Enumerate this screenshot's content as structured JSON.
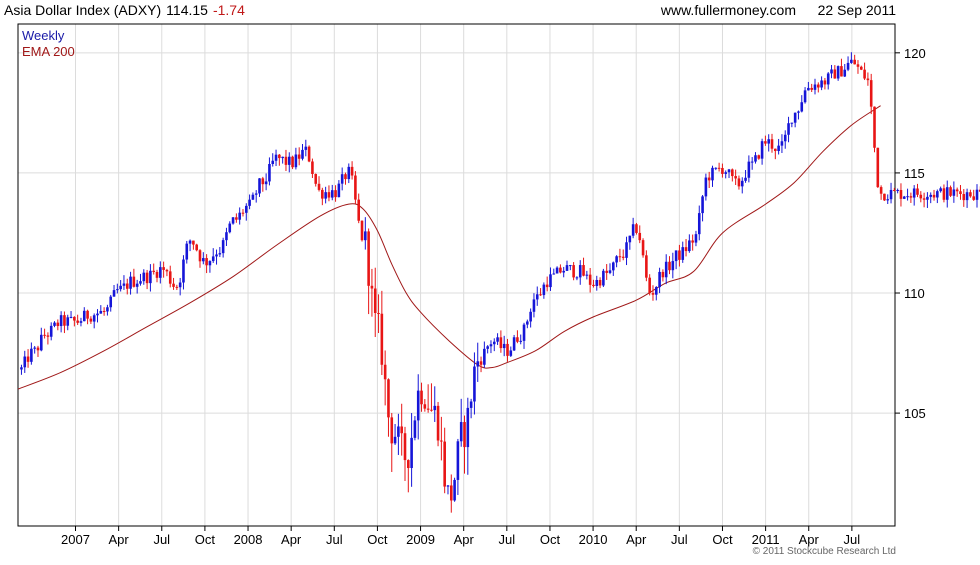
{
  "header": {
    "title": "Asia Dollar Index (ADXY)",
    "last": "114.15",
    "change": "-1.74",
    "site": "www.fullermoney.com",
    "date": "22 Sep 2011"
  },
  "legend": {
    "series1": "Weekly",
    "series2": "EMA 200"
  },
  "copyright": "© 2011 Stockcube Research Ltd",
  "colors": {
    "up": "#1515d8",
    "down": "#e81515",
    "ema": "#a01818",
    "grid": "#dcdcdc",
    "axis": "#000000",
    "change_text": "#c01818",
    "legend_weekly": "#1a1aa8",
    "legend_ema": "#a01818"
  },
  "chart_data": {
    "type": "candlestick",
    "x_range": [
      "2006-09",
      "2011-10"
    ],
    "y_range": [
      100.3,
      121.2
    ],
    "y_axis_position": "right",
    "y_ticks": [
      105,
      110,
      115,
      120
    ],
    "x_ticks": [
      {
        "label": "2007",
        "date": "2007-01"
      },
      {
        "label": "Apr",
        "date": "2007-04"
      },
      {
        "label": "Jul",
        "date": "2007-07"
      },
      {
        "label": "Oct",
        "date": "2007-10"
      },
      {
        "label": "2008",
        "date": "2008-01"
      },
      {
        "label": "Apr",
        "date": "2008-04"
      },
      {
        "label": "Jul",
        "date": "2008-07"
      },
      {
        "label": "Oct",
        "date": "2008-10"
      },
      {
        "label": "2009",
        "date": "2009-01"
      },
      {
        "label": "Apr",
        "date": "2009-04"
      },
      {
        "label": "Jul",
        "date": "2009-07"
      },
      {
        "label": "Oct",
        "date": "2009-10"
      },
      {
        "label": "2010",
        "date": "2010-01"
      },
      {
        "label": "Apr",
        "date": "2010-04"
      },
      {
        "label": "Jul",
        "date": "2010-07"
      },
      {
        "label": "Oct",
        "date": "2010-10"
      },
      {
        "label": "2011",
        "date": "2011-01"
      },
      {
        "label": "Apr",
        "date": "2011-04"
      },
      {
        "label": "Jul",
        "date": "2011-07"
      }
    ],
    "grid": true,
    "legend_position": "top-left",
    "series": [
      {
        "name": "Weekly",
        "kind": "price",
        "points": [
          [
            "2006-09",
            106.7
          ],
          [
            "2006-10",
            107.5
          ],
          [
            "2006-11",
            108.3
          ],
          [
            "2006-12",
            108.8
          ],
          [
            "2007-01",
            108.8
          ],
          [
            "2007-02",
            109.1
          ],
          [
            "2007-03",
            109.2
          ],
          [
            "2007-04",
            110.1
          ],
          [
            "2007-05",
            110.5
          ],
          [
            "2007-06",
            110.7
          ],
          [
            "2007-07",
            111.0
          ],
          [
            "2007-08",
            110.3
          ],
          [
            "2007-09",
            112.2
          ],
          [
            "2007-10",
            111.3
          ],
          [
            "2007-11",
            111.8
          ],
          [
            "2007-12",
            113.0
          ],
          [
            "2008-01",
            113.6
          ],
          [
            "2008-02",
            114.6
          ],
          [
            "2008-03",
            115.6
          ],
          [
            "2008-04",
            115.4
          ],
          [
            "2008-05",
            115.9
          ],
          [
            "2008-06",
            114.2
          ],
          [
            "2008-07",
            114.2
          ],
          [
            "2008-08",
            115.0
          ],
          [
            "2008-09",
            112.3
          ],
          [
            "2008-10",
            108.5
          ],
          [
            "2008-11",
            104.3
          ],
          [
            "2008-12",
            103.2
          ],
          [
            "2009-01",
            106.0
          ],
          [
            "2009-02",
            105.0
          ],
          [
            "2009-03",
            101.5
          ],
          [
            "2009-04",
            104.2
          ],
          [
            "2009-05",
            107.2
          ],
          [
            "2009-06",
            108.0
          ],
          [
            "2009-07",
            107.6
          ],
          [
            "2009-08",
            108.3
          ],
          [
            "2009-09",
            109.8
          ],
          [
            "2009-10",
            110.6
          ],
          [
            "2009-11",
            111.0
          ],
          [
            "2009-12",
            110.9
          ],
          [
            "2010-01",
            110.4
          ],
          [
            "2010-02",
            110.8
          ],
          [
            "2010-03",
            111.6
          ],
          [
            "2010-04",
            112.7
          ],
          [
            "2010-05",
            110.0
          ],
          [
            "2010-06",
            111.0
          ],
          [
            "2010-07",
            111.6
          ],
          [
            "2010-08",
            112.2
          ],
          [
            "2010-09",
            114.9
          ],
          [
            "2010-10",
            115.2
          ],
          [
            "2010-11",
            114.5
          ],
          [
            "2010-12",
            115.3
          ],
          [
            "2011-01",
            116.3
          ],
          [
            "2011-02",
            116.0
          ],
          [
            "2011-03",
            117.5
          ],
          [
            "2011-04",
            118.6
          ],
          [
            "2011-05",
            118.8
          ],
          [
            "2011-06",
            119.2
          ],
          [
            "2011-07",
            119.6
          ],
          [
            "2011-08",
            119.0
          ],
          [
            "2011-09",
            114.15
          ]
        ]
      },
      {
        "name": "EMA 200",
        "kind": "line",
        "points": [
          [
            "2006-09",
            106.0
          ],
          [
            "2006-12",
            106.7
          ],
          [
            "2007-03",
            107.6
          ],
          [
            "2007-06",
            108.6
          ],
          [
            "2007-09",
            109.6
          ],
          [
            "2007-12",
            110.7
          ],
          [
            "2008-03",
            112.0
          ],
          [
            "2008-06",
            113.2
          ],
          [
            "2008-08",
            113.7
          ],
          [
            "2008-09",
            113.5
          ],
          [
            "2008-10",
            112.6
          ],
          [
            "2008-11",
            111.2
          ],
          [
            "2008-12",
            110.0
          ],
          [
            "2009-01",
            109.2
          ],
          [
            "2009-03",
            108.0
          ],
          [
            "2009-05",
            107.0
          ],
          [
            "2009-06",
            106.9
          ],
          [
            "2009-07",
            107.1
          ],
          [
            "2009-09",
            107.6
          ],
          [
            "2009-11",
            108.4
          ],
          [
            "2010-01",
            109.0
          ],
          [
            "2010-04",
            109.7
          ],
          [
            "2010-06",
            110.4
          ],
          [
            "2010-08",
            110.9
          ],
          [
            "2010-10",
            112.5
          ],
          [
            "2011-01",
            113.7
          ],
          [
            "2011-03",
            114.6
          ],
          [
            "2011-05",
            115.9
          ],
          [
            "2011-07",
            117.0
          ],
          [
            "2011-09",
            117.8
          ]
        ]
      }
    ]
  }
}
